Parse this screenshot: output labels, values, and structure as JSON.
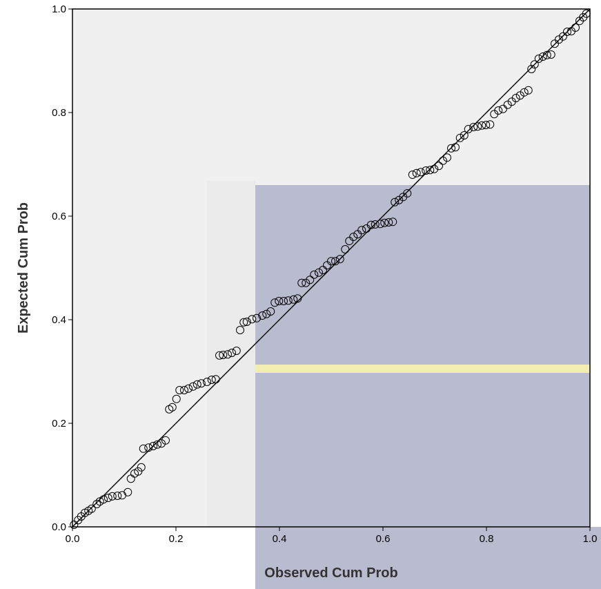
{
  "chart_data": {
    "type": "scatter",
    "x_label": "Observed Cum Prob",
    "y_label": "Expected Cum Prob",
    "xlim": [
      0,
      1
    ],
    "ylim": [
      0,
      1
    ],
    "xticks": [
      {
        "value": 0,
        "label": "0.0"
      },
      0.2,
      0.4,
      0.6,
      0.8,
      {
        "value": 1,
        "label": "1.0"
      }
    ],
    "yticks": [
      {
        "value": 0,
        "label": "0.0"
      },
      0.2,
      0.4,
      0.6,
      0.8,
      {
        "value": 1,
        "label": "1.0"
      }
    ],
    "color": "#000000",
    "x": [
      0.003,
      0.011,
      0.017,
      0.024,
      0.031,
      0.037,
      0.047,
      0.053,
      0.06,
      0.069,
      0.077,
      0.087,
      0.096,
      0.107,
      0.113,
      0.12,
      0.127,
      0.133,
      0.137,
      0.147,
      0.156,
      0.164,
      0.172,
      0.18,
      0.187,
      0.193,
      0.201,
      0.207,
      0.216,
      0.224,
      0.233,
      0.241,
      0.249,
      0.26,
      0.269,
      0.277,
      0.284,
      0.291,
      0.3,
      0.308,
      0.317,
      0.324,
      0.331,
      0.337,
      0.347,
      0.356,
      0.367,
      0.375,
      0.383,
      0.391,
      0.399,
      0.408,
      0.417,
      0.427,
      0.435,
      0.443,
      0.451,
      0.459,
      0.467,
      0.476,
      0.484,
      0.492,
      0.5,
      0.508,
      0.517,
      0.527,
      0.535,
      0.543,
      0.551,
      0.559,
      0.568,
      0.577,
      0.585,
      0.595,
      0.603,
      0.611,
      0.619,
      0.623,
      0.631,
      0.639,
      0.647,
      0.657,
      0.665,
      0.673,
      0.683,
      0.691,
      0.699,
      0.708,
      0.716,
      0.724,
      0.732,
      0.74,
      0.749,
      0.757,
      0.765,
      0.775,
      0.783,
      0.791,
      0.799,
      0.807,
      0.815,
      0.823,
      0.832,
      0.841,
      0.849,
      0.857,
      0.865,
      0.873,
      0.881,
      0.887,
      0.893,
      0.901,
      0.909,
      0.917,
      0.925,
      0.932,
      0.94,
      0.948,
      0.956,
      0.964,
      0.972,
      0.98,
      0.987,
      0.993
    ],
    "values": [
      0.004,
      0.013,
      0.02,
      0.027,
      0.031,
      0.035,
      0.044,
      0.049,
      0.053,
      0.056,
      0.059,
      0.06,
      0.061,
      0.067,
      0.093,
      0.103,
      0.107,
      0.115,
      0.151,
      0.153,
      0.156,
      0.159,
      0.161,
      0.167,
      0.227,
      0.231,
      0.247,
      0.264,
      0.264,
      0.267,
      0.271,
      0.275,
      0.277,
      0.28,
      0.284,
      0.285,
      0.331,
      0.332,
      0.333,
      0.336,
      0.34,
      0.38,
      0.395,
      0.396,
      0.401,
      0.403,
      0.408,
      0.411,
      0.416,
      0.433,
      0.436,
      0.436,
      0.437,
      0.439,
      0.441,
      0.471,
      0.471,
      0.477,
      0.487,
      0.491,
      0.496,
      0.505,
      0.513,
      0.513,
      0.517,
      0.536,
      0.552,
      0.56,
      0.565,
      0.573,
      0.576,
      0.583,
      0.584,
      0.585,
      0.587,
      0.588,
      0.589,
      0.627,
      0.631,
      0.637,
      0.644,
      0.68,
      0.683,
      0.685,
      0.688,
      0.689,
      0.691,
      0.697,
      0.707,
      0.713,
      0.731,
      0.733,
      0.751,
      0.756,
      0.768,
      0.772,
      0.773,
      0.775,
      0.776,
      0.777,
      0.797,
      0.804,
      0.807,
      0.815,
      0.821,
      0.828,
      0.833,
      0.839,
      0.843,
      0.884,
      0.893,
      0.904,
      0.908,
      0.911,
      0.912,
      0.933,
      0.941,
      0.947,
      0.956,
      0.957,
      0.964,
      0.977,
      0.984,
      0.991
    ]
  }
}
